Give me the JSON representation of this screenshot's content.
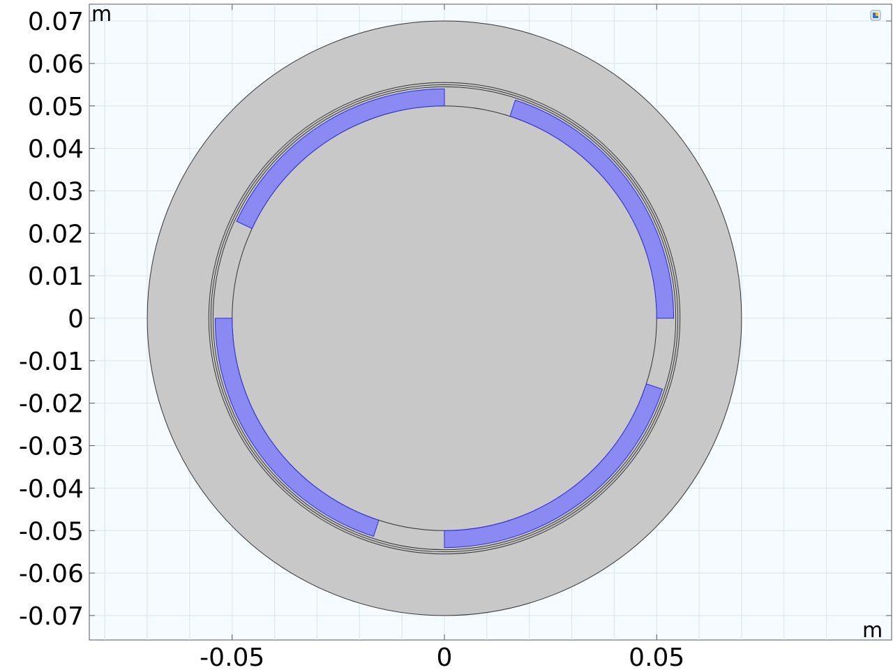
{
  "view": {
    "x_unit": "m",
    "y_unit": "m",
    "x_range": [
      -0.0838,
      0.0995
    ],
    "y_range": [
      -0.0765,
      0.0745
    ],
    "x_ticks": [
      -0.05,
      0,
      0.05
    ],
    "x_tick_labels": [
      "-0.05",
      "0",
      "0.05"
    ],
    "y_ticks": [
      0.07,
      0.06,
      0.05,
      0.04,
      0.03,
      0.02,
      0.01,
      0,
      -0.01,
      -0.02,
      -0.03,
      -0.04,
      -0.05,
      -0.06,
      -0.07
    ],
    "y_tick_labels": [
      "0.07",
      "0.06",
      "0.05",
      "0.04",
      "0.03",
      "0.02",
      "0.01",
      "0",
      "-0.01",
      "-0.02",
      "-0.03",
      "-0.04",
      "-0.05",
      "-0.06",
      "-0.07"
    ],
    "grid_step": 0.01,
    "grid": true
  },
  "geometry": {
    "outer_radius": 0.07,
    "airgap_radii": [
      0.0545,
      0.055,
      0.0555
    ],
    "rotor_radius": 0.05,
    "magnet_inner_radius": 0.05,
    "magnet_outer_radius": 0.054,
    "magnets": [
      {
        "start_deg": 90,
        "end_deg": 155
      },
      {
        "start_deg": 180,
        "end_deg": 252
      },
      {
        "start_deg": 270,
        "end_deg": 342
      },
      {
        "start_deg": 0,
        "end_deg": 72
      }
    ]
  },
  "colors": {
    "background": "#f6fbff",
    "grid": "#d8e4ec",
    "body_fill": "#c8c8c8",
    "outline": "#333333",
    "magnet_fill": "#8a8af2",
    "magnet_stroke": "#2a2ad8",
    "axis_frame": "#555555"
  },
  "icons": {
    "corner": "view-cube-icon"
  }
}
